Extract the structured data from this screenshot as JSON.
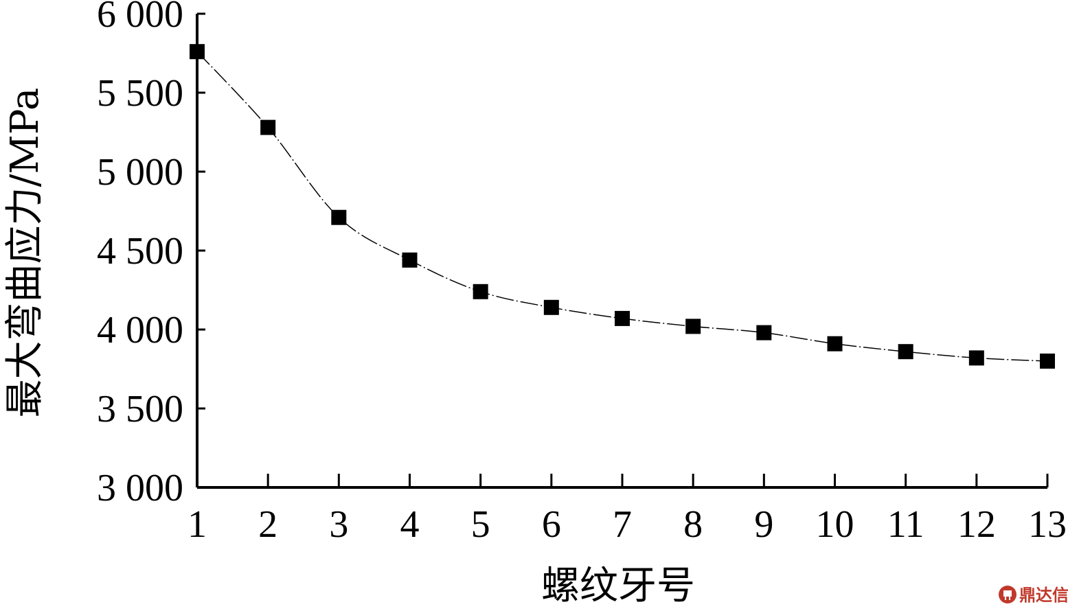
{
  "chart_data": {
    "type": "line",
    "title": "",
    "xlabel": "螺纹牙号",
    "ylabel": "最大弯曲应力/MPa",
    "x": [
      1,
      2,
      3,
      4,
      5,
      6,
      7,
      8,
      9,
      10,
      11,
      12,
      13
    ],
    "xticks": [
      "1",
      "2",
      "3",
      "4",
      "5",
      "6",
      "7",
      "8",
      "9",
      "10",
      "11",
      "12",
      "13"
    ],
    "series": [
      {
        "values": [
          5760,
          5280,
          4710,
          4440,
          4240,
          4140,
          4070,
          4020,
          3980,
          3910,
          3860,
          3820,
          3800
        ],
        "marker": "square",
        "color": "#000000"
      }
    ],
    "ylim": [
      3000,
      6000
    ],
    "yticks": [
      3000,
      3500,
      4000,
      4500,
      5000,
      5500,
      6000
    ],
    "ytick_labels": [
      "3 000",
      "3 500",
      "4 000",
      "4 500",
      "5 000",
      "5 500",
      "6 000"
    ],
    "xlim": [
      1,
      13
    ],
    "grid": false,
    "legend": "none"
  },
  "watermark": {
    "text": "鼎达信",
    "icon": "dingdaxin-logo-icon",
    "color": "#c0392b"
  }
}
